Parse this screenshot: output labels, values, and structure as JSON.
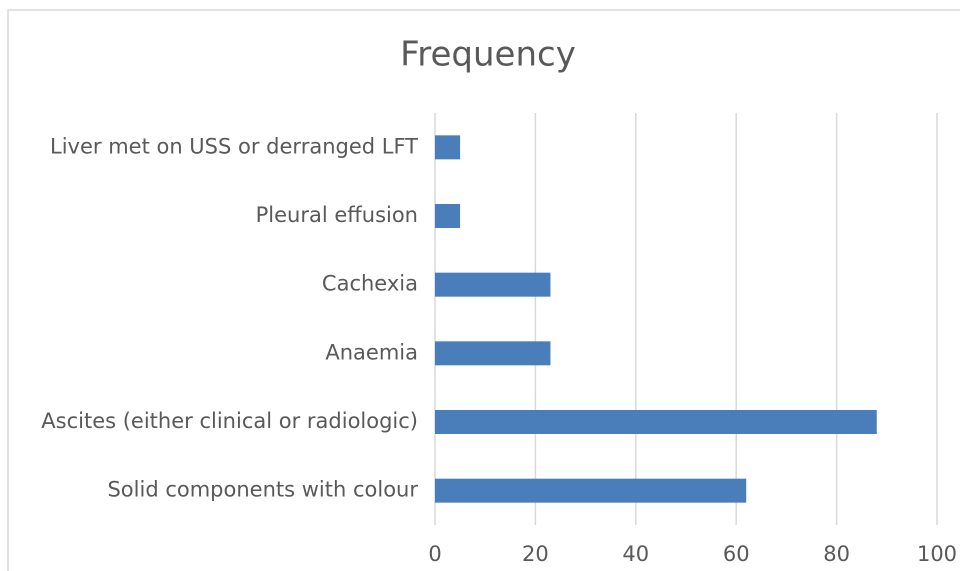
{
  "chart_data": {
    "type": "bar",
    "orientation": "horizontal",
    "title": "Frequency",
    "categories": [
      "Liver met on USS or derranged LFT",
      "Pleural effusion",
      "Cachexia",
      "Anaemia",
      "Ascites (either clinical or radiologic)",
      "Solid components with colour"
    ],
    "values": [
      5,
      5,
      23,
      23,
      88,
      62
    ],
    "color": "#4a7ebb",
    "xlim": [
      0,
      100
    ],
    "xticks": [
      0,
      20,
      40,
      60,
      80,
      100
    ],
    "grid": true
  }
}
